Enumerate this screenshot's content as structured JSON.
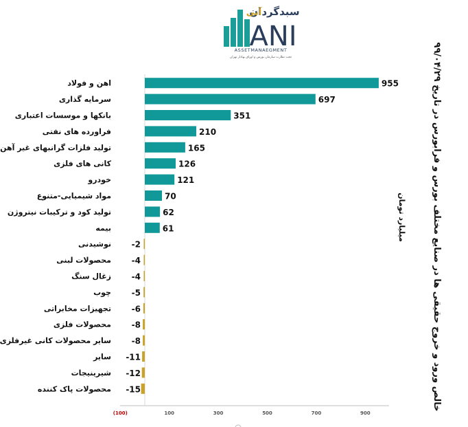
{
  "logo": {
    "brand_fa": "سبدگردان",
    "brand_fa2": "آنی",
    "mark": "ANI",
    "tagline_en": "ASSETMANAEGMENT",
    "tagline_fa": "تحت نظارت سازمان بورس و اوراق بهادار تهران"
  },
  "chart_data": {
    "type": "bar",
    "orientation": "horizontal",
    "title": "خالص ورود و خروج حقیقی ها در صنایع مختلف بورس و فرابورس در تاریخ ۹۹/۰۴/۲۹",
    "unit": "میلیارد تومان",
    "categories": [
      "اهن و فولاد",
      "سرمایه گذاری",
      "بانکها و موسسات اعتباری",
      "فراورده های نفتی",
      "تولید فلزات گرانبهای غیر آهن",
      "کانی های فلزی",
      "خودرو",
      "مواد شیمیایی-متنوع",
      "تولید کود و ترکیبات نیتروژن",
      "بیمه",
      "نوشیدنی",
      "محصولات لبنی",
      "زغال سنگ",
      "چوب",
      "تجهیزات مخابراتی",
      "محصولات فلزی",
      "سایر محصولات کانی غیرفلزی",
      "سایر",
      "شیرینیجات",
      "محصولات پاک کننده"
    ],
    "values": [
      955,
      697,
      351,
      210,
      165,
      126,
      121,
      70,
      62,
      61,
      -2,
      -4,
      -4,
      -5,
      -6,
      -8,
      -8,
      -11,
      -12,
      -15
    ],
    "value_labels": [
      "955",
      "697",
      "351",
      "210",
      "165",
      "126",
      "121",
      "70",
      "62",
      "61",
      "-2",
      "-4",
      "-4",
      "-5",
      "-6",
      "-8",
      "-8",
      "-11",
      "-12",
      "-15"
    ],
    "x_ticks": [
      -100,
      100,
      300,
      500,
      700,
      900
    ],
    "x_tick_labels": [
      "(100)",
      "100",
      "300",
      "500",
      "700",
      "900"
    ],
    "xlim": [
      -100,
      1000
    ],
    "colors": {
      "positive": "#11999a",
      "negative": "#c9a227"
    },
    "grid": false
  }
}
